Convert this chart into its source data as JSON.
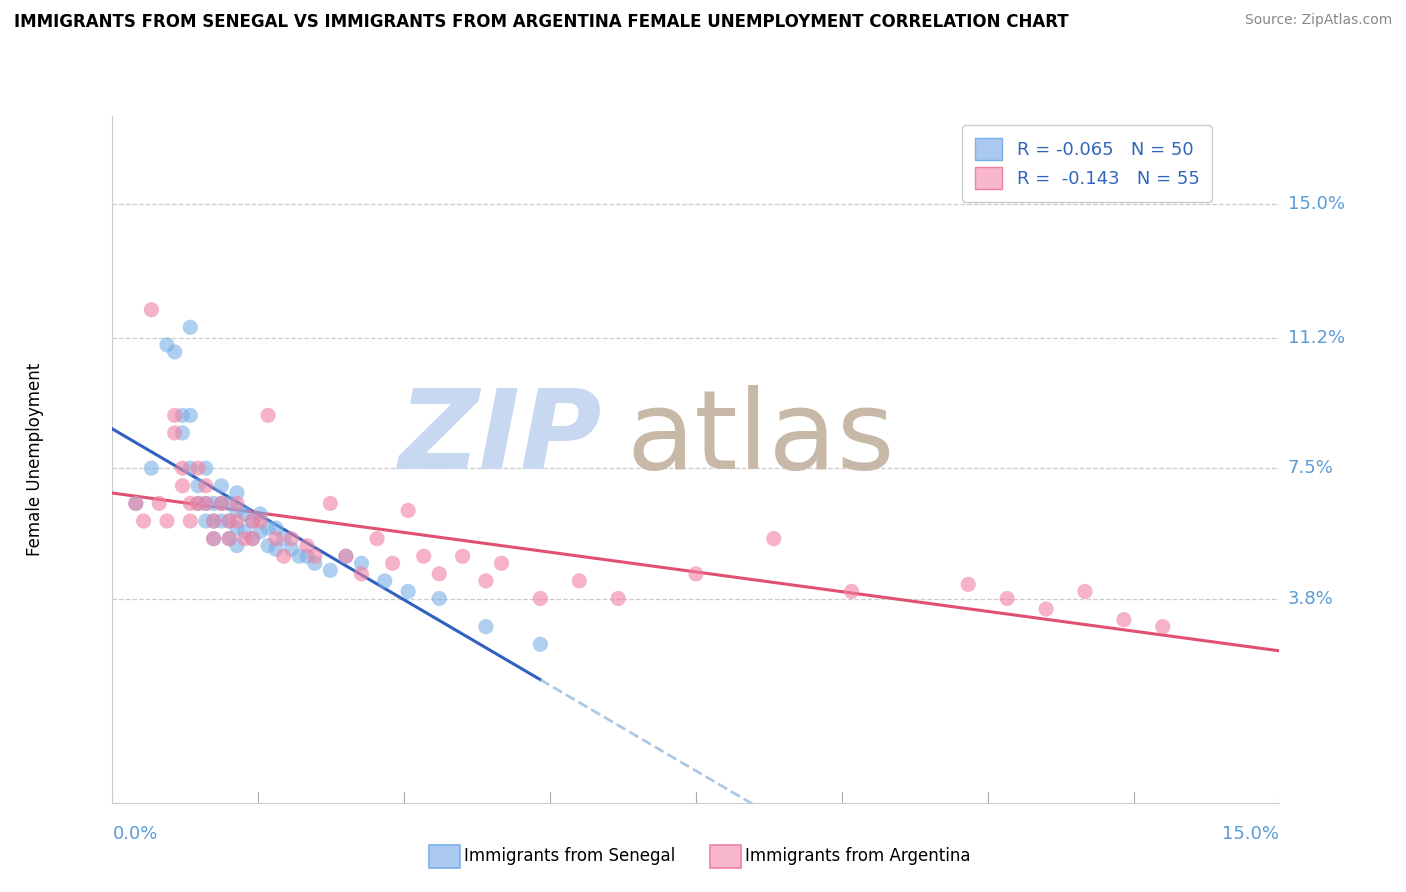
{
  "title": "IMMIGRANTS FROM SENEGAL VS IMMIGRANTS FROM ARGENTINA FEMALE UNEMPLOYMENT CORRELATION CHART",
  "source": "Source: ZipAtlas.com",
  "ylabel": "Female Unemployment",
  "yticks": [
    0.038,
    0.075,
    0.112,
    0.15
  ],
  "ytick_labels": [
    "3.8%",
    "7.5%",
    "11.2%",
    "15.0%"
  ],
  "xlim": [
    0.0,
    0.15
  ],
  "ylim": [
    -0.02,
    0.175
  ],
  "legend_r1": "R = -0.065   N = 50",
  "legend_r2": "R =  -0.143   N = 55",
  "senegal_color": "#7ab0e8",
  "argentina_color": "#f080a0",
  "senegal_line_color": "#3060c0",
  "argentina_line_color": "#e05070",
  "watermark_zip_color": "#c8d8f0",
  "watermark_atlas_color": "#c8b8a8",
  "senegal_x": [
    0.003,
    0.005,
    0.007,
    0.008,
    0.009,
    0.009,
    0.01,
    0.01,
    0.01,
    0.011,
    0.011,
    0.012,
    0.012,
    0.012,
    0.013,
    0.013,
    0.013,
    0.014,
    0.014,
    0.014,
    0.015,
    0.015,
    0.015,
    0.016,
    0.016,
    0.016,
    0.016,
    0.017,
    0.017,
    0.018,
    0.018,
    0.019,
    0.019,
    0.02,
    0.02,
    0.021,
    0.021,
    0.022,
    0.023,
    0.024,
    0.025,
    0.026,
    0.028,
    0.03,
    0.032,
    0.035,
    0.038,
    0.042,
    0.048,
    0.055
  ],
  "senegal_y": [
    0.065,
    0.075,
    0.11,
    0.108,
    0.09,
    0.085,
    0.115,
    0.09,
    0.075,
    0.07,
    0.065,
    0.065,
    0.06,
    0.075,
    0.065,
    0.06,
    0.055,
    0.07,
    0.065,
    0.06,
    0.065,
    0.06,
    0.055,
    0.068,
    0.063,
    0.058,
    0.053,
    0.062,
    0.057,
    0.06,
    0.055,
    0.062,
    0.057,
    0.058,
    0.053,
    0.058,
    0.052,
    0.055,
    0.052,
    0.05,
    0.05,
    0.048,
    0.046,
    0.05,
    0.048,
    0.043,
    0.04,
    0.038,
    0.03,
    0.025
  ],
  "argentina_x": [
    0.003,
    0.004,
    0.005,
    0.006,
    0.007,
    0.008,
    0.008,
    0.009,
    0.009,
    0.01,
    0.01,
    0.011,
    0.011,
    0.012,
    0.012,
    0.013,
    0.013,
    0.014,
    0.015,
    0.015,
    0.016,
    0.016,
    0.017,
    0.018,
    0.018,
    0.019,
    0.02,
    0.021,
    0.022,
    0.023,
    0.025,
    0.026,
    0.028,
    0.03,
    0.032,
    0.034,
    0.036,
    0.038,
    0.04,
    0.042,
    0.045,
    0.048,
    0.05,
    0.055,
    0.06,
    0.065,
    0.075,
    0.085,
    0.095,
    0.11,
    0.115,
    0.12,
    0.125,
    0.13,
    0.135
  ],
  "argentina_y": [
    0.065,
    0.06,
    0.12,
    0.065,
    0.06,
    0.09,
    0.085,
    0.075,
    0.07,
    0.065,
    0.06,
    0.075,
    0.065,
    0.07,
    0.065,
    0.06,
    0.055,
    0.065,
    0.06,
    0.055,
    0.065,
    0.06,
    0.055,
    0.06,
    0.055,
    0.06,
    0.09,
    0.055,
    0.05,
    0.055,
    0.053,
    0.05,
    0.065,
    0.05,
    0.045,
    0.055,
    0.048,
    0.063,
    0.05,
    0.045,
    0.05,
    0.043,
    0.048,
    0.038,
    0.043,
    0.038,
    0.045,
    0.055,
    0.04,
    0.042,
    0.038,
    0.035,
    0.04,
    0.032,
    0.03
  ]
}
